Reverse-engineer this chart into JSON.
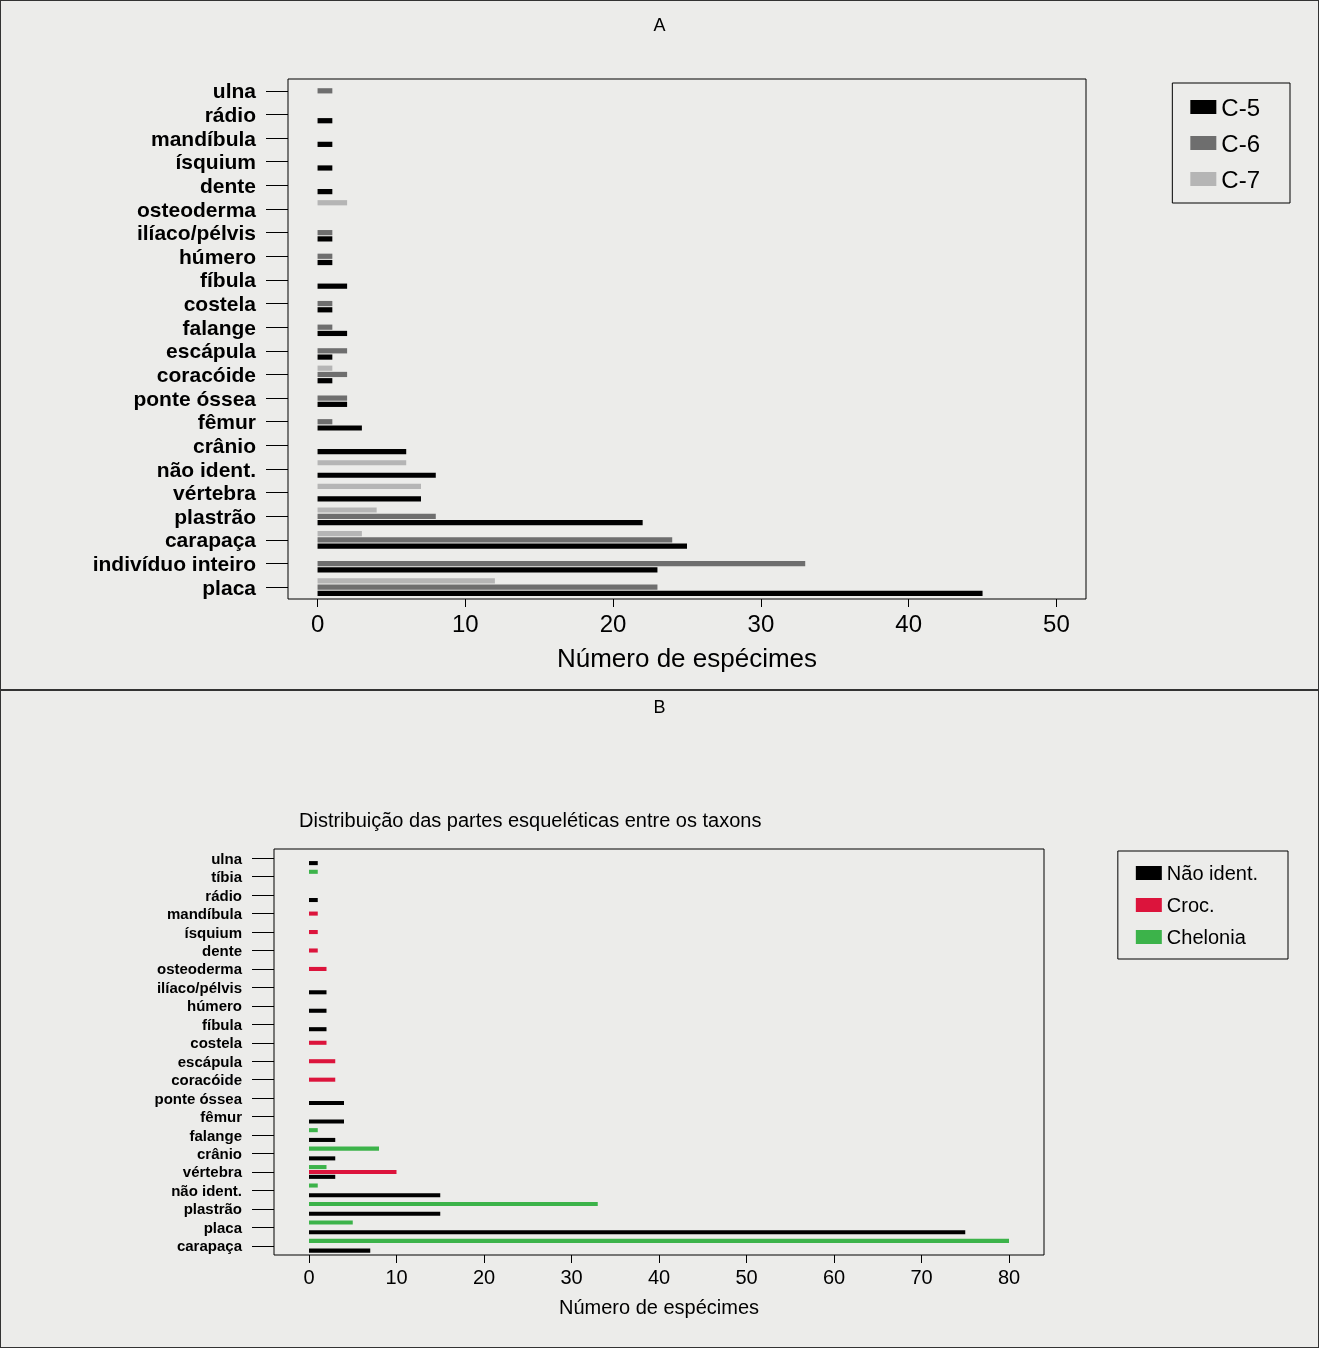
{
  "chart_data": [
    {
      "type": "bar",
      "title": "A",
      "orientation": "horizontal",
      "xlabel": "Número de espécimes",
      "categories": [
        "ulna",
        "rádio",
        "mandíbula",
        "ísquium",
        "dente",
        "osteoderma",
        "ilíaco/pélvis",
        "húmero",
        "fíbula",
        "costela",
        "falange",
        "escápula",
        "coracóide",
        "ponte óssea",
        "fêmur",
        "crânio",
        "não ident.",
        "vértebra",
        "plastrão",
        "carapaça",
        "indivíduo inteiro",
        "placa"
      ],
      "series": [
        {
          "name": "C-5",
          "color": "#000000",
          "values": [
            0,
            1,
            1,
            1,
            1,
            0,
            1,
            1,
            2,
            1,
            2,
            1,
            1,
            2,
            3,
            6,
            8,
            7,
            22,
            25,
            23,
            45
          ]
        },
        {
          "name": "C-6",
          "color": "#6e6e6e",
          "values": [
            1,
            0,
            0,
            0,
            0,
            0,
            1,
            1,
            0,
            1,
            1,
            2,
            2,
            2,
            1,
            0,
            0,
            0,
            8,
            24,
            33,
            23
          ]
        },
        {
          "name": "C-7",
          "color": "#b5b5b5",
          "values": [
            0,
            0,
            0,
            0,
            0,
            2,
            0,
            0,
            0,
            0,
            0,
            0,
            1,
            0,
            0,
            0,
            6,
            7,
            4,
            3,
            0,
            12
          ]
        }
      ],
      "xlim": [
        -2,
        52
      ],
      "xticks": [
        0,
        10,
        20,
        30,
        40,
        50
      ],
      "grid": false,
      "legend": "top right"
    },
    {
      "type": "bar",
      "title": "B",
      "subtitle": "Distribuição das partes esqueléticas entre os taxons",
      "orientation": "horizontal",
      "xlabel": "Número de espécimes",
      "categories": [
        "ulna",
        "tíbia",
        "rádio",
        "mandíbula",
        "ísquium",
        "dente",
        "osteoderma",
        "ilíaco/pélvis",
        "húmero",
        "fíbula",
        "costela",
        "escápula",
        "coracóide",
        "ponte óssea",
        "fêmur",
        "falange",
        "crânio",
        "vértebra",
        "não ident.",
        "plastrão",
        "placa",
        "carapaça"
      ],
      "series": [
        {
          "name": "Não ident.",
          "color": "#000000",
          "values": [
            1,
            0,
            1,
            0,
            0,
            0,
            0,
            2,
            2,
            2,
            0,
            0,
            0,
            4,
            4,
            3,
            3,
            3,
            15,
            15,
            75,
            7
          ]
        },
        {
          "name": "Croc.",
          "color": "#dc143c",
          "values": [
            0,
            0,
            0,
            1,
            1,
            1,
            2,
            0,
            0,
            0,
            2,
            3,
            3,
            0,
            0,
            0,
            0,
            10,
            0,
            0,
            0,
            0
          ]
        },
        {
          "name": "Chelonia",
          "color": "#3cb34a",
          "values": [
            0,
            1,
            0,
            0,
            0,
            0,
            0,
            0,
            0,
            0,
            0,
            0,
            0,
            0,
            0,
            1,
            8,
            2,
            1,
            33,
            5,
            80
          ]
        }
      ],
      "xlim": [
        -4,
        84
      ],
      "xticks": [
        0,
        10,
        20,
        30,
        40,
        50,
        60,
        70,
        80
      ],
      "grid": false,
      "legend": "top right"
    }
  ]
}
